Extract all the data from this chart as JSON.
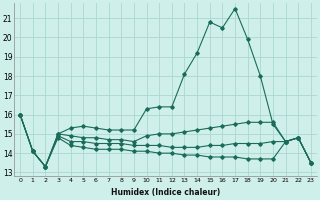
{
  "title": "",
  "xlabel": "Humidex (Indice chaleur)",
  "ylabel": "",
  "bg_color": "#cff0ea",
  "grid_color": "#aad8d0",
  "line_color": "#1a6b5a",
  "xlim": [
    -0.5,
    23.5
  ],
  "ylim": [
    12.8,
    21.8
  ],
  "xticks": [
    0,
    1,
    2,
    3,
    4,
    5,
    6,
    7,
    8,
    9,
    10,
    11,
    12,
    13,
    14,
    15,
    16,
    17,
    18,
    19,
    20,
    21,
    22,
    23
  ],
  "yticks": [
    13,
    14,
    15,
    16,
    17,
    18,
    19,
    20,
    21
  ],
  "series": [
    [
      16.0,
      14.1,
      13.3,
      15.0,
      15.3,
      15.4,
      15.3,
      15.2,
      15.2,
      15.2,
      16.3,
      16.4,
      16.4,
      18.1,
      19.2,
      20.8,
      20.5,
      21.5,
      19.9,
      18.0,
      15.5,
      14.6,
      14.8,
      13.5
    ],
    [
      16.0,
      14.1,
      13.3,
      15.0,
      14.9,
      14.8,
      14.8,
      14.7,
      14.7,
      14.6,
      14.9,
      15.0,
      15.0,
      15.1,
      15.2,
      15.3,
      15.4,
      15.5,
      15.6,
      15.6,
      15.6,
      14.6,
      14.8,
      13.5
    ],
    [
      16.0,
      14.1,
      13.3,
      14.9,
      14.6,
      14.6,
      14.5,
      14.5,
      14.5,
      14.4,
      14.4,
      14.4,
      14.3,
      14.3,
      14.3,
      14.4,
      14.4,
      14.5,
      14.5,
      14.5,
      14.6,
      14.6,
      14.8,
      13.5
    ],
    [
      16.0,
      14.1,
      13.3,
      14.8,
      14.4,
      14.3,
      14.2,
      14.2,
      14.2,
      14.1,
      14.1,
      14.0,
      14.0,
      13.9,
      13.9,
      13.8,
      13.8,
      13.8,
      13.7,
      13.7,
      13.7,
      14.6,
      14.8,
      13.5
    ]
  ]
}
